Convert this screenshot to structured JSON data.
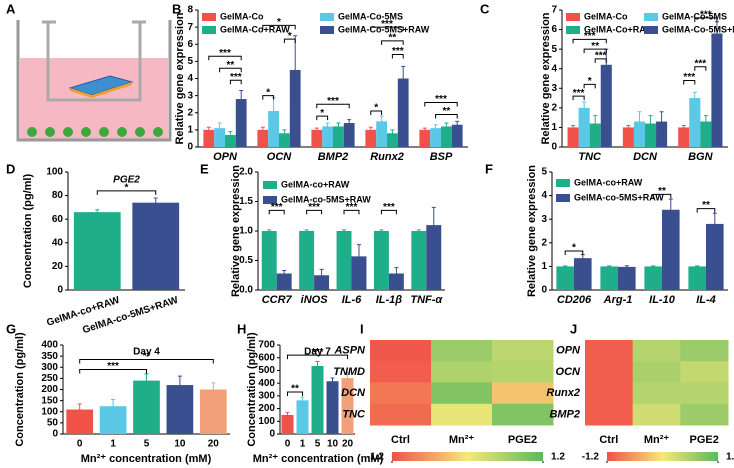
{
  "panel_a": {
    "panel": "A"
  },
  "chart_data": [
    {
      "type": "bar",
      "panel": "B",
      "ylabel": "Relative gene expression",
      "categories": [
        "OPN",
        "OCN",
        "BMP2",
        "Runx2",
        "BSP"
      ],
      "series": [
        {
          "name": "GelMA-Co",
          "color": "#f0524a",
          "values": [
            1,
            1,
            1,
            1,
            1
          ],
          "errors": [
            0.15,
            0.15,
            0.1,
            0.15,
            0.1
          ]
        },
        {
          "name": "GelMA-Co-5MS",
          "color": "#5bc8e6",
          "values": [
            1.1,
            2.1,
            1.2,
            1.5,
            1.1
          ],
          "errors": [
            0.3,
            0.8,
            0.2,
            0.3,
            0.2
          ]
        },
        {
          "name": "GelMA-Co+RAW",
          "color": "#1fae8a",
          "values": [
            0.7,
            0.8,
            1.2,
            0.8,
            1.2
          ],
          "errors": [
            0.2,
            0.2,
            0.2,
            0.2,
            0.2
          ]
        },
        {
          "name": "GelMA-Co-5MS+RAW",
          "color": "#3a4f8f",
          "values": [
            2.8,
            4.5,
            1.4,
            4,
            1.3
          ],
          "errors": [
            0.5,
            2,
            0.2,
            0.7,
            0.2
          ]
        }
      ],
      "ylim": [
        0,
        8
      ],
      "yticks": [
        0,
        1,
        2,
        3,
        4,
        5,
        6,
        7,
        8
      ],
      "annotations": [
        "***",
        "**",
        "***",
        "*",
        "*",
        "*",
        "***",
        "*",
        "*",
        "***",
        "**",
        "***",
        "***",
        "**"
      ]
    },
    {
      "type": "bar",
      "panel": "C",
      "ylabel": "Relative gene expression",
      "categories": [
        "TNC",
        "DCN",
        "BGN"
      ],
      "series": [
        {
          "name": "GelMA-Co",
          "color": "#f0524a",
          "values": [
            1,
            1,
            1
          ],
          "errors": [
            0.1,
            0.1,
            0.1
          ]
        },
        {
          "name": "GelMA-Co-5MS",
          "color": "#5bc8e6",
          "values": [
            2,
            1.3,
            2.5
          ],
          "errors": [
            0.3,
            0.5,
            0.3
          ]
        },
        {
          "name": "GelMA-Co+RAW",
          "color": "#1fae8a",
          "values": [
            1.2,
            1.2,
            1.3
          ],
          "errors": [
            0.4,
            0.4,
            0.3
          ]
        },
        {
          "name": "GelMA-Co-5MS+RAW",
          "color": "#3a4f8f",
          "values": [
            4.2,
            1.3,
            5.8
          ],
          "errors": [
            0.8,
            0.5,
            0.6
          ]
        }
      ],
      "ylim": [
        0,
        7
      ],
      "yticks": [
        0,
        1,
        2,
        3,
        4,
        5,
        6,
        7
      ],
      "annotations": [
        "***",
        "*",
        "***",
        "**",
        "***",
        "***",
        "***",
        "***"
      ]
    },
    {
      "type": "bar",
      "panel": "D",
      "subtitle": "PGE2",
      "ylabel": "Concentration (pg/ml)",
      "categories": [
        "GelMA-co+RAW",
        "GelMA-co-5MS+RAW"
      ],
      "values": [
        66,
        74
      ],
      "errors": [
        2,
        4
      ],
      "colors": [
        "#1fae8a",
        "#3a4f8f"
      ],
      "ylim": [
        0,
        100
      ],
      "yticks": [
        0,
        20,
        40,
        60,
        80,
        100
      ],
      "annotations": [
        "*"
      ]
    },
    {
      "type": "bar",
      "panel": "E",
      "ylabel": "Relative gene expression",
      "categories": [
        "CCR7",
        "iNOS",
        "IL-6",
        "IL-1β",
        "TNF-α"
      ],
      "series": [
        {
          "name": "GelMA-co+RAW",
          "color": "#1fae8a",
          "values": [
            1,
            1,
            1,
            1,
            1
          ],
          "errors": [
            0.02,
            0.02,
            0.02,
            0.02,
            0.02
          ]
        },
        {
          "name": "GelMA-co-5MS+RAW",
          "color": "#3a4f8f",
          "values": [
            0.28,
            0.25,
            0.57,
            0.28,
            1.1
          ],
          "errors": [
            0.05,
            0.1,
            0.2,
            0.1,
            0.3
          ]
        }
      ],
      "ylim": [
        0,
        2
      ],
      "yticks": [
        {
          "value": 0,
          "label": "0.0"
        },
        0.5,
        {
          "value": 1,
          "label": "1.0"
        },
        1.5,
        {
          "value": 2,
          "label": "2.0"
        }
      ],
      "annotations": [
        "***",
        "***",
        "***",
        "***"
      ]
    },
    {
      "type": "bar",
      "panel": "F",
      "ylabel": "Relative gene expression",
      "categories": [
        "CD206",
        "Arg-1",
        "IL-10",
        "IL-4"
      ],
      "series": [
        {
          "name": "GelMA-co+RAW",
          "color": "#1fae8a",
          "values": [
            1,
            1,
            1,
            1
          ],
          "errors": [
            0.02,
            0.02,
            0.02,
            0.02
          ]
        },
        {
          "name": "GelMA-co-5MS+RAW",
          "color": "#3a4f8f",
          "values": [
            1.35,
            0.98,
            3.4,
            2.8
          ],
          "errors": [
            0.15,
            0.05,
            0.45,
            0.45
          ]
        }
      ],
      "ylim": [
        0,
        5
      ],
      "yticks": [
        0,
        1,
        2,
        3,
        4,
        5
      ],
      "annotations": [
        "*",
        "**",
        "**"
      ]
    },
    {
      "type": "bar",
      "panel": "G",
      "subtitle": "Day 4",
      "ylabel": "Concentration (pg/ml)",
      "xlabel": "Mn²⁺ concentration (mM)",
      "categories": [
        "0",
        "1",
        "5",
        "10",
        "20"
      ],
      "values": [
        110,
        125,
        240,
        220,
        200
      ],
      "errors": [
        25,
        30,
        30,
        40,
        30
      ],
      "colors": [
        "#f0524a",
        "#5bc8e6",
        "#1fae8a",
        "#3a4f8f",
        "#f2a07a"
      ],
      "ylim": [
        0,
        400
      ],
      "yticks": [
        0,
        50,
        100,
        150,
        200,
        250,
        300,
        350,
        400
      ],
      "annotations": [
        "**",
        "***"
      ]
    },
    {
      "type": "bar",
      "panel": "H",
      "subtitle": "Day 7",
      "ylabel": "Concentration (pg/ml)",
      "xlabel": "Mn²⁺ concentration (mM)",
      "categories": [
        "0",
        "1",
        "5",
        "10",
        "20"
      ],
      "values": [
        150,
        265,
        535,
        415,
        440
      ],
      "errors": [
        20,
        25,
        35,
        25,
        45
      ],
      "colors": [
        "#f0524a",
        "#5bc8e6",
        "#1fae8a",
        "#3a4f8f",
        "#f2a07a"
      ],
      "ylim": [
        0,
        700
      ],
      "yticks": [
        0,
        100,
        200,
        300,
        400,
        500,
        600,
        700
      ],
      "annotations": [
        "**",
        "***"
      ]
    },
    {
      "type": "heatmap",
      "panel": "I",
      "rows": [
        "ASPN",
        "TNMD",
        "DCN",
        "TNC"
      ],
      "columns": [
        "Ctrl",
        "Mn²⁺",
        "PGE2"
      ],
      "values": [
        [
          -1.15,
          0.7,
          0.45
        ],
        [
          -1.1,
          0.55,
          0.5
        ],
        [
          -0.9,
          0.9,
          -0.3
        ],
        [
          -1,
          0.1,
          0.9
        ]
      ],
      "colormap": [
        "#f0524a",
        "#f6e87a",
        "#5cb85c"
      ],
      "clim": [
        -1.2,
        1.2
      ],
      "cticks": [
        -1.2,
        1.2
      ]
    },
    {
      "type": "heatmap",
      "panel": "J",
      "rows": [
        "OPN",
        "OCN",
        "Runx2",
        "BMP2"
      ],
      "columns": [
        "Ctrl",
        "Mn²⁺",
        "PGE2"
      ],
      "values": [
        [
          -1.1,
          0.5,
          0.7
        ],
        [
          -1.1,
          0.6,
          0.4
        ],
        [
          -1.1,
          0.5,
          0.5
        ],
        [
          -1.1,
          0.3,
          0.7
        ]
      ],
      "colormap": [
        "#f0524a",
        "#f6e87a",
        "#5cb85c"
      ],
      "clim": [
        -1.2,
        1.2
      ],
      "cticks": [
        -1.2,
        1.2
      ]
    }
  ]
}
